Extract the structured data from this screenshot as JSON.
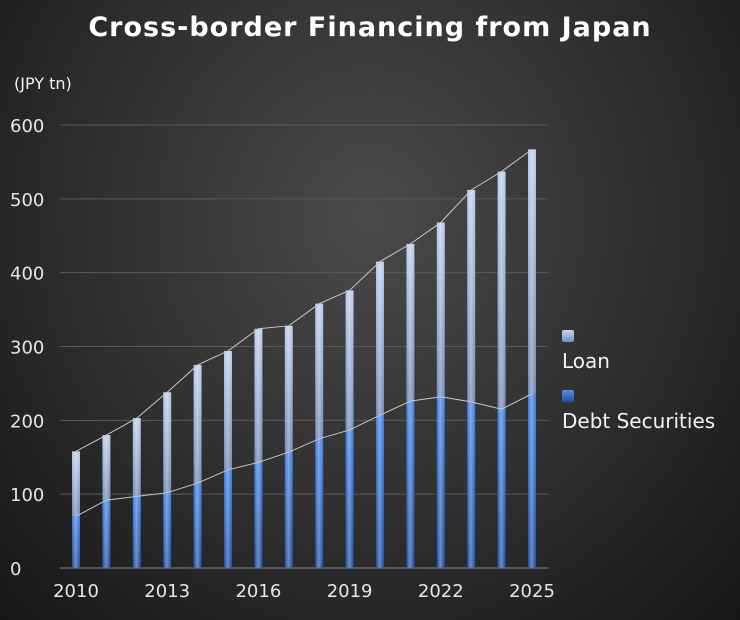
{
  "chart_data": {
    "type": "bar",
    "stacked": true,
    "title": "Cross-border Financing from Japan",
    "unit_label": "(JPY tn)",
    "categories": [
      "2010",
      "2011",
      "2012",
      "2013",
      "2014",
      "2015",
      "2016",
      "2017",
      "2018",
      "2019",
      "2020",
      "2021",
      "2022",
      "2023",
      "2024",
      "2025"
    ],
    "x_tick_labels": [
      "2010",
      "2013",
      "2016",
      "2019",
      "2022",
      "2025"
    ],
    "y_ticks": [
      0,
      100,
      200,
      300,
      400,
      500,
      600
    ],
    "ylim": [
      0,
      600
    ],
    "series": [
      {
        "name": "Debt Securities",
        "values": [
          70,
          92,
          97,
          102,
          115,
          133,
          143,
          157,
          175,
          187,
          207,
          226,
          232,
          225,
          215,
          236
        ]
      },
      {
        "name": "Loan",
        "values": [
          88,
          88,
          106,
          136,
          160,
          161,
          181,
          171,
          183,
          189,
          208,
          213,
          236,
          287,
          322,
          331
        ]
      }
    ],
    "legend_position": "right",
    "colors": {
      "loan": "#9fb3d8",
      "debt_securities": "#2a63c2",
      "connector": "#c8c8c8"
    }
  }
}
